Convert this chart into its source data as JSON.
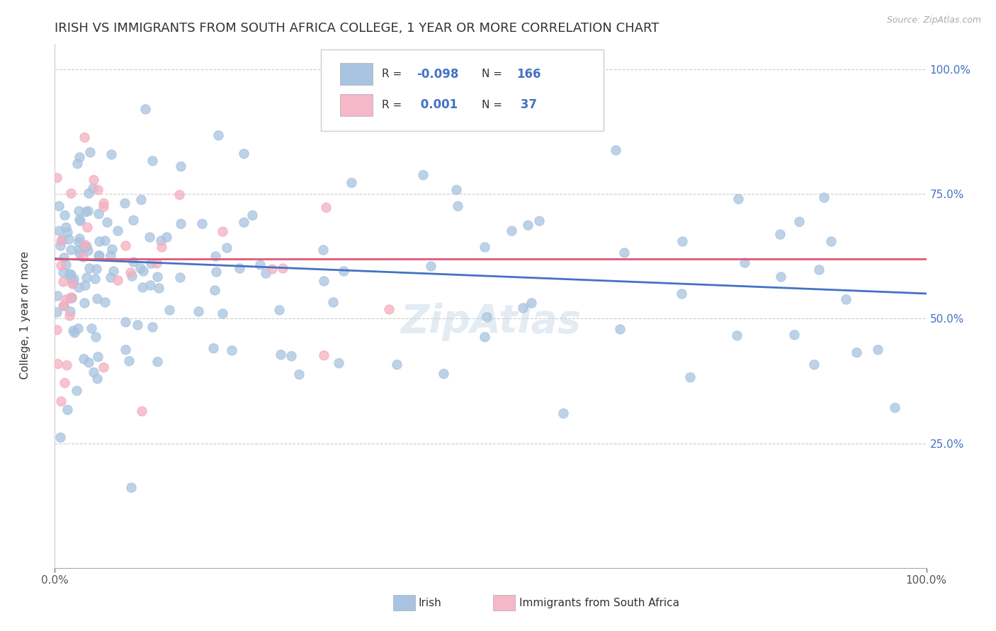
{
  "title": "IRISH VS IMMIGRANTS FROM SOUTH AFRICA COLLEGE, 1 YEAR OR MORE CORRELATION CHART",
  "source": "Source: ZipAtlas.com",
  "ylabel": "College, 1 year or more",
  "xlim": [
    0,
    100
  ],
  "ylim": [
    0,
    105
  ],
  "yticks": [
    25,
    50,
    75,
    100
  ],
  "ytick_labels": [
    "25.0%",
    "50.0%",
    "75.0%",
    "100.0%"
  ],
  "xticks": [
    0,
    100
  ],
  "xtick_labels": [
    "0.0%",
    "100.0%"
  ],
  "legend_r_irish": "-0.098",
  "legend_n_irish": "166",
  "legend_r_sa": "0.001",
  "legend_n_sa": "37",
  "irish_color": "#a8c4e0",
  "sa_color": "#f4afc0",
  "irish_line_color": "#4472c4",
  "sa_line_color": "#e05878",
  "legend_color_irish": "#a8c4e0",
  "legend_color_sa": "#f4b8c8",
  "background_color": "#ffffff",
  "grid_color": "#cccccc",
  "title_fontsize": 13,
  "irish_trendline_start_y": 62,
  "irish_trendline_end_y": 55,
  "sa_trendline_y": 62
}
